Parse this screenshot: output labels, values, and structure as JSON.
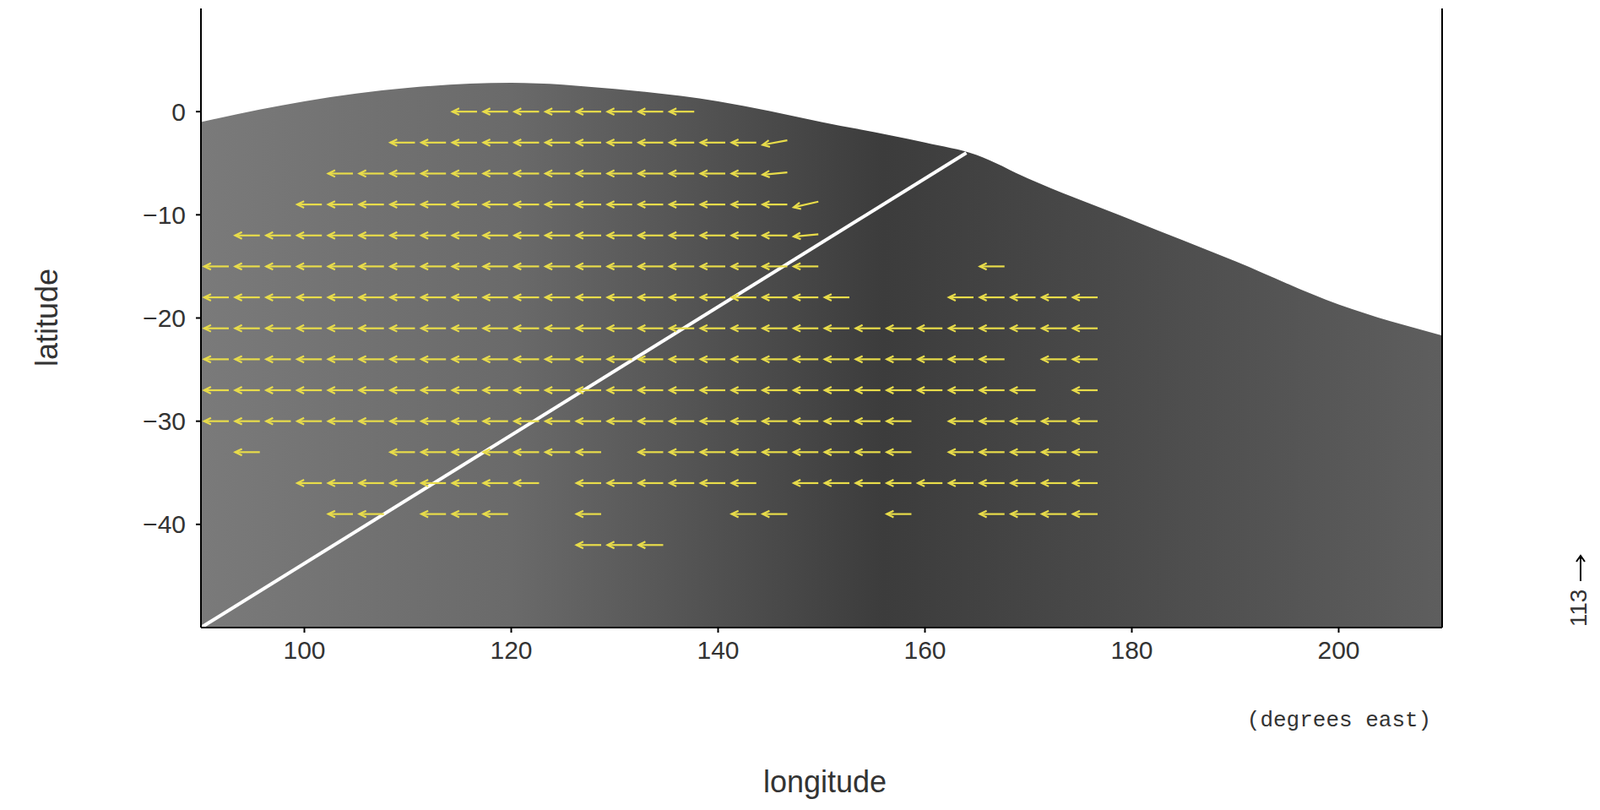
{
  "chart_data": {
    "type": "quiver",
    "x_label": "longitude",
    "x_unit_label": "(degrees east)",
    "y_label": "latitude",
    "xlim": [
      90,
      210
    ],
    "xticks": [
      100,
      120,
      140,
      160,
      180,
      200
    ],
    "ylim": [
      -50,
      10
    ],
    "yticks": [
      {
        "value": -40,
        "label": "−40"
      },
      {
        "value": -30,
        "label": "−30"
      },
      {
        "value": -20,
        "label": "−20"
      },
      {
        "value": -10,
        "label": "−10"
      },
      0
    ],
    "color": "#e8dc4a",
    "reference_vector": 113,
    "rows": [
      {
        "y": 0,
        "x": [
          115.5,
          118.5,
          121.5,
          124.5,
          127.5,
          130.5,
          133.5,
          136.5
        ],
        "u": [
          -110,
          -110,
          -110,
          -110,
          -110,
          -110,
          -110,
          -110
        ],
        "v": [
          0,
          0,
          0,
          0,
          0,
          0,
          0,
          0
        ]
      },
      {
        "y": -3,
        "x": [
          109.5,
          112.5,
          115.5,
          118.5,
          121.5,
          124.5,
          127.5,
          130.5,
          133.5,
          136.5,
          139.5,
          142.5,
          145.5
        ],
        "u": [
          -110,
          -110,
          -110,
          -110,
          -110,
          -110,
          -110,
          -110,
          -110,
          -110,
          -110,
          -110,
          -110
        ],
        "v": [
          0,
          0,
          0,
          0,
          0,
          0,
          0,
          0,
          0,
          0,
          0,
          0,
          -20
        ]
      },
      {
        "y": -6,
        "x": [
          103.5,
          106.5,
          109.5,
          112.5,
          115.5,
          118.5,
          121.5,
          124.5,
          127.5,
          130.5,
          133.5,
          136.5,
          139.5,
          142.5,
          145.5
        ],
        "u": [
          -110,
          -110,
          -110,
          -110,
          -110,
          -110,
          -110,
          -110,
          -110,
          -110,
          -110,
          -110,
          -110,
          -110,
          -110
        ],
        "v": [
          0,
          0,
          0,
          0,
          0,
          0,
          0,
          0,
          0,
          0,
          0,
          0,
          0,
          0,
          -10
        ]
      },
      {
        "y": -9,
        "x": [
          100.5,
          103.5,
          106.5,
          109.5,
          112.5,
          115.5,
          118.5,
          121.5,
          124.5,
          127.5,
          130.5,
          133.5,
          136.5,
          139.5,
          142.5,
          145.5,
          148.5
        ],
        "u": [
          -110,
          -110,
          -110,
          -110,
          -110,
          -110,
          -110,
          -110,
          -110,
          -110,
          -110,
          -110,
          -110,
          -110,
          -110,
          -110,
          -110
        ],
        "v": [
          0,
          0,
          0,
          0,
          0,
          0,
          0,
          0,
          0,
          0,
          0,
          0,
          0,
          0,
          0,
          0,
          -25
        ]
      },
      {
        "y": -12,
        "x": [
          94.5,
          97.5,
          100.5,
          103.5,
          106.5,
          109.5,
          112.5,
          115.5,
          118.5,
          121.5,
          124.5,
          127.5,
          130.5,
          133.5,
          136.5,
          139.5,
          142.5,
          145.5,
          148.5
        ],
        "u": [
          -110,
          -110,
          -110,
          -110,
          -110,
          -110,
          -110,
          -110,
          -110,
          -110,
          -110,
          -110,
          -110,
          -110,
          -110,
          -110,
          -110,
          -110,
          -110
        ],
        "v": [
          0,
          0,
          0,
          0,
          0,
          0,
          0,
          0,
          0,
          0,
          0,
          0,
          0,
          0,
          0,
          0,
          0,
          0,
          -10
        ]
      },
      {
        "y": -15,
        "x": [
          91.5,
          94.5,
          97.5,
          100.5,
          103.5,
          106.5,
          109.5,
          112.5,
          115.5,
          118.5,
          121.5,
          124.5,
          127.5,
          130.5,
          133.5,
          136.5,
          139.5,
          142.5,
          145.5,
          148.5,
          166.5
        ],
        "u": [
          -110,
          -110,
          -110,
          -110,
          -110,
          -110,
          -110,
          -110,
          -110,
          -110,
          -110,
          -110,
          -110,
          -110,
          -110,
          -110,
          -110,
          -110,
          -110,
          -110,
          -110
        ],
        "v": [
          0,
          0,
          0,
          0,
          0,
          0,
          0,
          0,
          0,
          0,
          0,
          0,
          0,
          0,
          0,
          0,
          0,
          0,
          0,
          0,
          0
        ]
      },
      {
        "y": -18,
        "x": [
          91.5,
          94.5,
          97.5,
          100.5,
          103.5,
          106.5,
          109.5,
          112.5,
          115.5,
          118.5,
          121.5,
          124.5,
          127.5,
          130.5,
          133.5,
          136.5,
          139.5,
          142.5,
          145.5,
          148.5,
          151.5,
          163.5,
          166.5,
          169.5,
          172.5,
          175.5
        ],
        "u": [
          -110,
          -110,
          -110,
          -110,
          -110,
          -110,
          -110,
          -110,
          -110,
          -110,
          -110,
          -110,
          -110,
          -110,
          -110,
          -110,
          -110,
          -110,
          -110,
          -110,
          -110,
          -110,
          -110,
          -110,
          -110,
          -110
        ],
        "v": [
          0,
          0,
          0,
          0,
          0,
          0,
          0,
          0,
          0,
          0,
          0,
          0,
          0,
          0,
          0,
          0,
          0,
          0,
          0,
          0,
          0,
          0,
          0,
          0,
          0,
          0
        ]
      },
      {
        "y": -21,
        "x": [
          91.5,
          94.5,
          97.5,
          100.5,
          103.5,
          106.5,
          109.5,
          112.5,
          115.5,
          118.5,
          121.5,
          124.5,
          127.5,
          130.5,
          133.5,
          136.5,
          139.5,
          142.5,
          145.5,
          148.5,
          151.5,
          154.5,
          157.5,
          160.5,
          163.5,
          166.5,
          169.5,
          172.5,
          175.5
        ],
        "u": [
          -110,
          -110,
          -110,
          -110,
          -110,
          -110,
          -110,
          -110,
          -110,
          -110,
          -110,
          -110,
          -110,
          -110,
          -110,
          -110,
          -110,
          -110,
          -110,
          -110,
          -110,
          -110,
          -110,
          -110,
          -110,
          -110,
          -110,
          -110,
          -110
        ],
        "v": [
          0,
          0,
          0,
          0,
          0,
          0,
          0,
          0,
          0,
          0,
          0,
          0,
          0,
          0,
          0,
          0,
          0,
          0,
          0,
          0,
          0,
          0,
          0,
          0,
          0,
          0,
          0,
          0,
          0
        ]
      },
      {
        "y": -24,
        "x": [
          91.5,
          94.5,
          97.5,
          100.5,
          103.5,
          106.5,
          109.5,
          112.5,
          115.5,
          118.5,
          121.5,
          124.5,
          127.5,
          130.5,
          133.5,
          136.5,
          139.5,
          142.5,
          145.5,
          148.5,
          151.5,
          154.5,
          157.5,
          160.5,
          163.5,
          166.5,
          172.5,
          175.5
        ],
        "u": [
          -110,
          -110,
          -110,
          -110,
          -110,
          -110,
          -110,
          -110,
          -110,
          -110,
          -110,
          -110,
          -110,
          -110,
          -110,
          -110,
          -110,
          -110,
          -110,
          -110,
          -110,
          -110,
          -110,
          -110,
          -110,
          -110,
          -110,
          -110
        ],
        "v": [
          0,
          0,
          0,
          0,
          0,
          0,
          0,
          0,
          0,
          0,
          0,
          0,
          0,
          0,
          0,
          0,
          0,
          0,
          0,
          0,
          0,
          0,
          0,
          0,
          0,
          0,
          0,
          0
        ]
      },
      {
        "y": -27,
        "x": [
          91.5,
          94.5,
          97.5,
          100.5,
          103.5,
          106.5,
          109.5,
          112.5,
          115.5,
          118.5,
          121.5,
          124.5,
          127.5,
          130.5,
          133.5,
          136.5,
          139.5,
          142.5,
          145.5,
          148.5,
          151.5,
          154.5,
          157.5,
          160.5,
          163.5,
          166.5,
          169.5,
          175.5
        ],
        "u": [
          -110,
          -110,
          -110,
          -110,
          -110,
          -110,
          -110,
          -110,
          -110,
          -110,
          -110,
          -110,
          -110,
          -110,
          -110,
          -110,
          -110,
          -110,
          -110,
          -110,
          -110,
          -110,
          -110,
          -110,
          -110,
          -110,
          -110,
          -110
        ],
        "v": [
          0,
          0,
          0,
          0,
          0,
          0,
          0,
          0,
          0,
          0,
          0,
          0,
          0,
          0,
          0,
          0,
          0,
          0,
          0,
          0,
          0,
          0,
          0,
          0,
          0,
          0,
          0,
          0
        ]
      },
      {
        "y": -30,
        "x": [
          91.5,
          94.5,
          97.5,
          100.5,
          103.5,
          106.5,
          109.5,
          112.5,
          115.5,
          118.5,
          121.5,
          124.5,
          127.5,
          130.5,
          133.5,
          136.5,
          139.5,
          142.5,
          145.5,
          148.5,
          151.5,
          154.5,
          157.5,
          163.5,
          166.5,
          169.5,
          172.5,
          175.5
        ],
        "u": [
          -110,
          -110,
          -110,
          -110,
          -110,
          -110,
          -110,
          -110,
          -110,
          -110,
          -110,
          -110,
          -110,
          -110,
          -110,
          -110,
          -110,
          -110,
          -110,
          -110,
          -110,
          -110,
          -110,
          -110,
          -110,
          -110,
          -110,
          -110
        ],
        "v": [
          0,
          0,
          0,
          0,
          0,
          0,
          0,
          0,
          0,
          0,
          0,
          0,
          0,
          0,
          0,
          0,
          0,
          0,
          0,
          0,
          0,
          0,
          0,
          0,
          0,
          0,
          0,
          0
        ]
      },
      {
        "y": -33,
        "x": [
          94.5,
          109.5,
          112.5,
          115.5,
          118.5,
          121.5,
          124.5,
          127.5,
          133.5,
          136.5,
          139.5,
          142.5,
          145.5,
          148.5,
          151.5,
          154.5,
          157.5,
          163.5,
          166.5,
          169.5,
          172.5,
          175.5
        ],
        "u": [
          -110,
          -110,
          -110,
          -110,
          -110,
          -110,
          -110,
          -110,
          -110,
          -110,
          -110,
          -110,
          -110,
          -110,
          -110,
          -110,
          -110,
          -110,
          -110,
          -110,
          -110,
          -110
        ],
        "v": [
          0,
          0,
          0,
          0,
          0,
          0,
          0,
          0,
          0,
          0,
          0,
          0,
          0,
          0,
          0,
          0,
          0,
          0,
          0,
          0,
          0,
          0
        ]
      },
      {
        "y": -36,
        "x": [
          100.5,
          103.5,
          106.5,
          109.5,
          112.5,
          115.5,
          118.5,
          121.5,
          127.5,
          130.5,
          133.5,
          136.5,
          139.5,
          142.5,
          148.5,
          151.5,
          154.5,
          157.5,
          160.5,
          163.5,
          166.5,
          169.5,
          172.5,
          175.5
        ],
        "u": [
          -110,
          -110,
          -110,
          -110,
          -110,
          -110,
          -110,
          -110,
          -110,
          -110,
          -110,
          -110,
          -110,
          -110,
          -110,
          -110,
          -110,
          -110,
          -110,
          -110,
          -110,
          -110,
          -110,
          -110
        ],
        "v": [
          0,
          0,
          0,
          0,
          0,
          0,
          0,
          0,
          0,
          0,
          0,
          0,
          0,
          0,
          0,
          0,
          0,
          0,
          0,
          0,
          0,
          0,
          0,
          0
        ]
      },
      {
        "y": -39,
        "x": [
          103.5,
          106.5,
          112.5,
          115.5,
          118.5,
          127.5,
          142.5,
          145.5,
          157.5,
          166.5,
          169.5,
          172.5,
          175.5
        ],
        "u": [
          -110,
          -110,
          -110,
          -110,
          -110,
          -110,
          -110,
          -110,
          -110,
          -110,
          -110,
          -110,
          -110
        ],
        "v": [
          0,
          0,
          0,
          0,
          0,
          0,
          0,
          0,
          0,
          0,
          0,
          0,
          0
        ]
      },
      {
        "y": -42,
        "x": [
          127.5,
          130.5,
          133.5
        ],
        "u": [
          -110,
          -110,
          -110
        ],
        "v": [
          0,
          0,
          0
        ]
      }
    ],
    "line": {
      "x": [
        90,
        164
      ],
      "y": [
        -50,
        -4
      ],
      "color": "#ffffff"
    },
    "image_edge": {
      "x": [
        90,
        100,
        110,
        120,
        130,
        140,
        150,
        160,
        165,
        170,
        180,
        190,
        200,
        210
      ],
      "y": [
        -1,
        1,
        2.3,
        2.8,
        2.2,
        1,
        -1,
        -3,
        -4.2,
        -6.5,
        -10.5,
        -14.5,
        -18.7,
        -21.7
      ]
    }
  }
}
